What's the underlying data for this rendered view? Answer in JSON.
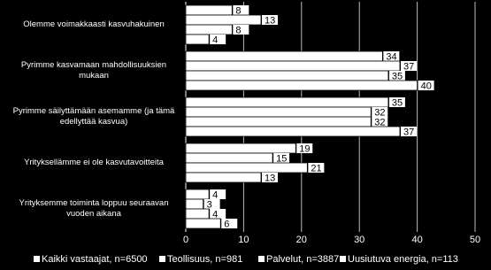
{
  "chart_data": {
    "type": "bar",
    "orientation": "horizontal",
    "categories": [
      "Olemme voimakkaasti kasvuhakuinen",
      "Pyrimme kasvamaan mahdollisuuksien mukaan",
      "Pyrimme säilyttämään asemamme (ja tämä edellyttää kasvua)",
      "Yrityksellämme ei ole kasvutavoitteita",
      "Yrityksemme toiminta loppuu seuraavan vuoden aikana"
    ],
    "series": [
      {
        "name": "Kaikki vastaajat, n=6500",
        "color": "#ffffff",
        "values": [
          8,
          34,
          35,
          19,
          4
        ]
      },
      {
        "name": "Teollisuus, n=981",
        "color": "#ffffff",
        "values": [
          13,
          37,
          32,
          15,
          3
        ]
      },
      {
        "name": "Palvelut, n=3887",
        "color": "#ffffff",
        "values": [
          8,
          35,
          32,
          21,
          4
        ]
      },
      {
        "name": "Uusiutuva energia, n=113",
        "color": "#ffffff",
        "values": [
          4,
          40,
          37,
          13,
          6
        ]
      }
    ],
    "xlim": [
      0,
      50
    ],
    "xticks": [
      0,
      10,
      20,
      30,
      40,
      50
    ],
    "grid": true,
    "legend": "bottom"
  }
}
